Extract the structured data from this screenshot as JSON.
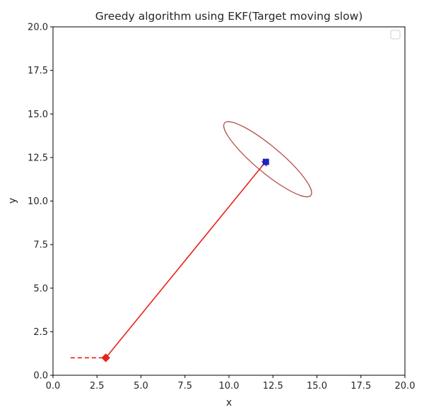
{
  "chart_data": {
    "type": "line",
    "title": "Greedy algorithm using EKF(Target moving slow)",
    "xlabel": "x",
    "ylabel": "y",
    "xlim": [
      0.0,
      20.0
    ],
    "ylim": [
      0.0,
      20.0
    ],
    "xticks": [
      "0.0",
      "2.5",
      "5.0",
      "7.5",
      "10.0",
      "12.5",
      "15.0",
      "17.5",
      "20.0"
    ],
    "yticks": [
      "0.0",
      "2.5",
      "5.0",
      "7.5",
      "10.0",
      "12.5",
      "15.0",
      "17.5",
      "20.0"
    ],
    "grid": false,
    "legend": {
      "placement": "upper right",
      "entries": []
    },
    "series": [
      {
        "kind": "dashed-line",
        "color": "#e8231b",
        "points": [
          [
            1.0,
            1.0
          ],
          [
            3.0,
            1.0
          ]
        ]
      },
      {
        "kind": "solid-line",
        "color": "#e8231b",
        "points": [
          [
            3.0,
            1.0
          ],
          [
            12.0,
            12.15
          ]
        ]
      },
      {
        "kind": "marker",
        "marker": "diamond",
        "color": "#e8231b",
        "points": [
          [
            3.0,
            1.0
          ]
        ]
      },
      {
        "kind": "marker",
        "marker": "x",
        "color": "#7030a0",
        "points": [
          [
            12.0,
            12.15
          ]
        ]
      },
      {
        "kind": "marker",
        "marker": "square",
        "color": "#1f1fd6",
        "points": [
          [
            12.1,
            12.25
          ]
        ]
      }
    ],
    "ellipse": {
      "color": "#b5514a",
      "center": [
        12.2,
        12.4
      ],
      "semi_major": 3.2,
      "semi_minor": 0.75,
      "angle_deg": -40
    }
  }
}
